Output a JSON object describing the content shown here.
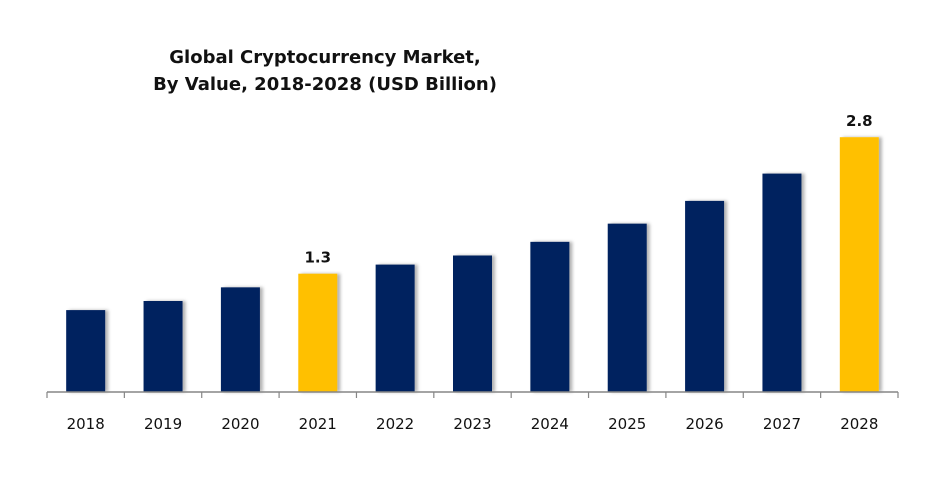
{
  "chart_data": {
    "type": "bar",
    "title_lines": [
      "Global Cryptocurrency Market,",
      "By Value, 2018-2028 (USD Billion)"
    ],
    "xlabel": "",
    "ylabel": "",
    "categories": [
      "2018",
      "2019",
      "2020",
      "2021",
      "2022",
      "2023",
      "2024",
      "2025",
      "2026",
      "2027",
      "2028"
    ],
    "values": [
      0.9,
      1.0,
      1.15,
      1.3,
      1.4,
      1.5,
      1.65,
      1.85,
      2.1,
      2.4,
      2.8
    ],
    "data_labels": {
      "2021": "1.3",
      "2028": "2.8"
    },
    "highlight": [
      "2021",
      "2028"
    ],
    "ylim": [
      0,
      3.0
    ],
    "grid": false,
    "legend": "none",
    "colors": {
      "bar": "#03215e",
      "highlight": "#ffc000",
      "axis": "#868686",
      "text": "#111111"
    }
  }
}
